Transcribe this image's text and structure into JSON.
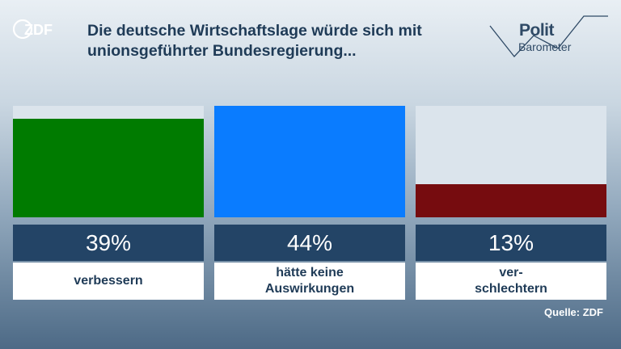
{
  "header": {
    "brand": "ZDF",
    "title": "Die deutsche Wirtschaftslage würde sich mit unionsgeführter Bundesregierung...",
    "polit": "Polit",
    "barometer": "Barometer"
  },
  "chart_data": {
    "type": "bar",
    "title": "Die deutsche Wirtschaftslage würde sich mit unionsgeführter Bundesregierung...",
    "categories": [
      "verbessern",
      "hätte keine\nAuswirkungen",
      "ver-\nschlechtern"
    ],
    "values": [
      39,
      44,
      13
    ],
    "value_labels": [
      "39%",
      "44%",
      "13%"
    ],
    "colors": [
      "#007b00",
      "#0a7cff",
      "#760c0f"
    ],
    "ylim": [
      0,
      44
    ],
    "unit": "%"
  },
  "source": "Quelle: ZDF"
}
